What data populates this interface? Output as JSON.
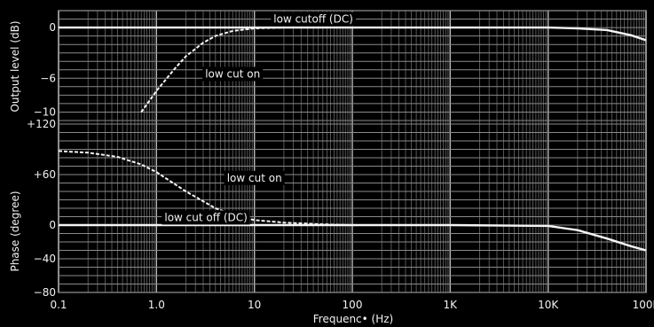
{
  "chart_data": {
    "type": "line",
    "x_scale": "log",
    "xlim": [
      0.1,
      100000
    ],
    "xlabel": "Frequenc• (Hz)",
    "x_ticks": [
      {
        "value": 0.1,
        "label": "0.1"
      },
      {
        "value": 1,
        "label": "1.0"
      },
      {
        "value": 10,
        "label": "10"
      },
      {
        "value": 100,
        "label": "100"
      },
      {
        "value": 1000,
        "label": "1K"
      },
      {
        "value": 10000,
        "label": "10K"
      },
      {
        "value": 100000,
        "label": "100K"
      }
    ],
    "grid": true,
    "panels": [
      {
        "id": "level",
        "ylabel": "Output level (dB)",
        "ylim": [
          -11,
          2
        ],
        "y_ticks": [
          {
            "value": 0,
            "label": "0"
          },
          {
            "value": -6,
            "label": "−6"
          },
          {
            "value": -10,
            "label": "−10"
          }
        ],
        "series": [
          {
            "name": "low cut off (DC)",
            "x": [
              0.1,
              1,
              10,
              100,
              1000,
              10000,
              20000,
              40000,
              70000,
              100000
            ],
            "y": [
              0,
              0,
              0,
              0,
              0,
              0,
              -0.1,
              -0.3,
              -0.9,
              -1.5
            ]
          },
          {
            "name": "low cut on",
            "x": [
              0.7,
              1,
              1.5,
              2,
              3,
              4,
              6,
              10,
              20
            ],
            "y": [
              -10,
              -7.5,
              -5,
              -3.4,
              -1.8,
              -1,
              -0.4,
              -0.1,
              0
            ]
          }
        ]
      },
      {
        "id": "phase",
        "ylabel": "Phase (degree)",
        "ylim": [
          -80,
          120
        ],
        "y_ticks": [
          {
            "value": 120,
            "label": "+120"
          },
          {
            "value": 60,
            "label": "+60"
          },
          {
            "value": 0,
            "label": "0"
          },
          {
            "value": -40,
            "label": "−40"
          },
          {
            "value": -80,
            "label": "−80"
          }
        ],
        "series": [
          {
            "name": "low cut off (DC)",
            "x": [
              0.1,
              1,
              10,
              100,
              1000,
              10000,
              20000,
              40000,
              70000,
              100000
            ],
            "y": [
              0,
              0,
              0,
              0,
              0,
              -1,
              -6,
              -16,
              -25,
              -30
            ]
          },
          {
            "name": "low cut on",
            "x": [
              0.1,
              0.2,
              0.4,
              0.7,
              1,
              2,
              4,
              7,
              10,
              20,
              50,
              100
            ],
            "y": [
              88,
              86,
              81,
              72,
              63,
              40,
              20,
              10,
              6,
              3,
              1,
              0
            ]
          }
        ]
      }
    ],
    "annotations": [
      {
        "panel": "level",
        "text": "low cutoff (DC)",
        "x": 40,
        "y": 1.0
      },
      {
        "panel": "level",
        "text": "low cut on",
        "x": 6,
        "y": -5.5
      },
      {
        "panel": "phase",
        "text": "low cut on",
        "x": 10,
        "y": 56
      },
      {
        "panel": "phase",
        "text": "low cut off (DC)",
        "x": 3.2,
        "y": 9
      }
    ]
  }
}
